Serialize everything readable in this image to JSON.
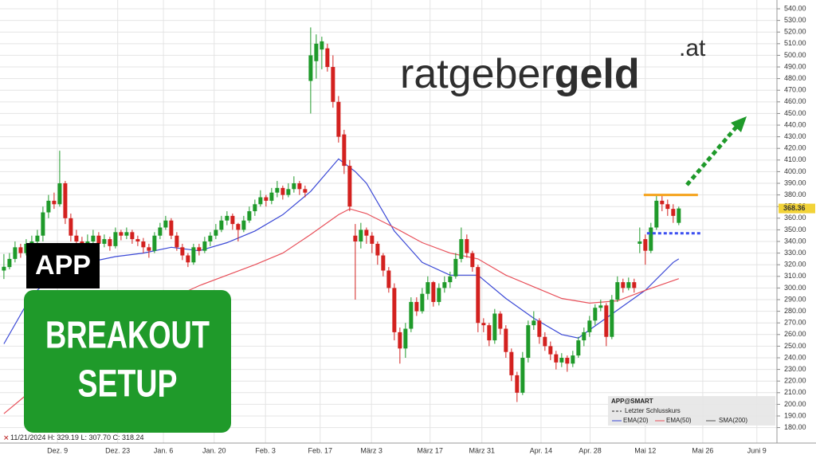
{
  "chart_data": {
    "type": "candlestick",
    "logo": {
      "main": "ratgeber",
      "bold": "geld",
      "suffix": ".at"
    },
    "badge": "APP",
    "setup": [
      "BREAKOUT",
      "SETUP"
    ],
    "info": {
      "date": "11/21/2024",
      "high": "H: 329.19",
      "low": "L: 307.70",
      "close": "C: 318.24"
    },
    "legend": {
      "title": "APP@SMART",
      "last_close": "Letzter Schlusskurs",
      "sma": "SMA(200)"
    },
    "colors": {
      "up": "#1f9a2a",
      "down": "#d3211f"
    },
    "xlim": [
      -0.7,
      138.6
    ],
    "xticks": [
      {
        "value": 9.6,
        "label": "Dez. 9"
      },
      {
        "value": 20.4,
        "label": "Dez. 23"
      },
      {
        "value": 28.6,
        "label": "Jan. 6"
      },
      {
        "value": 37.7,
        "label": "Jan. 20"
      },
      {
        "value": 46.9,
        "label": "Feb. 3"
      },
      {
        "value": 56.7,
        "label": "Feb. 17"
      },
      {
        "value": 65.9,
        "label": "März 3"
      },
      {
        "value": 76.4,
        "label": "März 17"
      },
      {
        "value": 85.7,
        "label": "März 31"
      },
      {
        "value": 96.3,
        "label": "Apr. 14"
      },
      {
        "value": 105.1,
        "label": "Apr. 28"
      },
      {
        "value": 115,
        "label": "Mai 12"
      },
      {
        "value": 125.3,
        "label": "Mai 26"
      },
      {
        "value": 135,
        "label": "Juni 9"
      }
    ],
    "ylim": [
      176.3,
      545.5
    ],
    "yticks": [
      {
        "value": 540,
        "label": "540.00"
      },
      {
        "value": 530,
        "label": "530.00"
      },
      {
        "value": 520,
        "label": "520.00"
      },
      {
        "value": 510,
        "label": "510.00"
      },
      {
        "value": 500,
        "label": "500.00"
      },
      {
        "value": 490,
        "label": "490.00"
      },
      {
        "value": 480,
        "label": "480.00"
      },
      {
        "value": 470,
        "label": "470.00"
      },
      {
        "value": 460,
        "label": "460.00"
      },
      {
        "value": 450,
        "label": "450.00"
      },
      {
        "value": 440,
        "label": "440.00"
      },
      {
        "value": 430,
        "label": "430.00"
      },
      {
        "value": 420,
        "label": "420.00"
      },
      {
        "value": 410,
        "label": "410.00"
      },
      {
        "value": 400,
        "label": "400.00"
      },
      {
        "value": 390,
        "label": "390.00"
      },
      {
        "value": 380,
        "label": "380.00"
      },
      {
        "value": 370,
        "label": "370.00"
      },
      {
        "value": 360,
        "label": "360.00"
      },
      {
        "value": 350,
        "label": "350.00"
      },
      {
        "value": 340,
        "label": "340.00"
      },
      {
        "value": 330,
        "label": "330.00"
      },
      {
        "value": 320,
        "label": "320.00"
      },
      {
        "value": 310,
        "label": "310.00"
      },
      {
        "value": 300,
        "label": "300.00"
      },
      {
        "value": 290,
        "label": "290.00"
      },
      {
        "value": 280,
        "label": "280.00"
      },
      {
        "value": 270,
        "label": "270.00"
      },
      {
        "value": 260,
        "label": "260.00"
      },
      {
        "value": 250,
        "label": "250.00"
      },
      {
        "value": 240,
        "label": "240.00"
      },
      {
        "value": 230,
        "label": "230.00"
      },
      {
        "value": 220,
        "label": "220.00"
      },
      {
        "value": 210,
        "label": "210.00"
      },
      {
        "value": 200,
        "label": "200.00"
      },
      {
        "value": 190,
        "label": "190.00"
      },
      {
        "value": 180,
        "label": "180.00"
      }
    ],
    "grid": true,
    "candles": [
      [
        315,
        329.19,
        307.7,
        318.24
      ],
      [
        318,
        330,
        316,
        325
      ],
      [
        325,
        340,
        322,
        335
      ],
      [
        335,
        338,
        326,
        330
      ],
      [
        330,
        342,
        328,
        338
      ],
      [
        338,
        345,
        333,
        340
      ],
      [
        340,
        350,
        336,
        345
      ],
      [
        345,
        370,
        340,
        365
      ],
      [
        365,
        380,
        360,
        375
      ],
      [
        375,
        382,
        368,
        372
      ],
      [
        372,
        418,
        370,
        390
      ],
      [
        390,
        392,
        355,
        360
      ],
      [
        360,
        364,
        340,
        345
      ],
      [
        345,
        350,
        336,
        340
      ],
      [
        340,
        344,
        330,
        335
      ],
      [
        335,
        346,
        332,
        340
      ],
      [
        340,
        350,
        338,
        345
      ],
      [
        345,
        348,
        334,
        338
      ],
      [
        338,
        346,
        335,
        342
      ],
      [
        342,
        344,
        332,
        336
      ],
      [
        336,
        352,
        334,
        348
      ],
      [
        348,
        350,
        341,
        345
      ],
      [
        345,
        352,
        342,
        348
      ],
      [
        348,
        350,
        338,
        342
      ],
      [
        342,
        345,
        336,
        340
      ],
      [
        340,
        343,
        330,
        335
      ],
      [
        335,
        338,
        326,
        332
      ],
      [
        332,
        348,
        330,
        345
      ],
      [
        345,
        356,
        342,
        352
      ],
      [
        352,
        362,
        350,
        358
      ],
      [
        358,
        360,
        342,
        345
      ],
      [
        345,
        348,
        332,
        335
      ],
      [
        335,
        338,
        324,
        328
      ],
      [
        328,
        330,
        318,
        322
      ],
      [
        322,
        338,
        320,
        335
      ],
      [
        335,
        338,
        328,
        332
      ],
      [
        332,
        344,
        330,
        340
      ],
      [
        340,
        348,
        336,
        345
      ],
      [
        345,
        355,
        342,
        350
      ],
      [
        350,
        362,
        348,
        358
      ],
      [
        358,
        366,
        354,
        362
      ],
      [
        362,
        364,
        350,
        355
      ],
      [
        355,
        356,
        340,
        350
      ],
      [
        350,
        362,
        348,
        358
      ],
      [
        358,
        370,
        356,
        366
      ],
      [
        366,
        376,
        362,
        372
      ],
      [
        372,
        384,
        370,
        378
      ],
      [
        378,
        380,
        370,
        375
      ],
      [
        375,
        386,
        372,
        382
      ],
      [
        382,
        392,
        378,
        386
      ],
      [
        386,
        388,
        376,
        380
      ],
      [
        380,
        390,
        378,
        385
      ],
      [
        385,
        396,
        382,
        390
      ],
      [
        390,
        392,
        380,
        385
      ],
      [
        385,
        388,
        378,
        382
      ],
      [
        478,
        524,
        450,
        500
      ],
      [
        495,
        518,
        480,
        510
      ],
      [
        505,
        516,
        488,
        512
      ],
      [
        506,
        510,
        486,
        490
      ],
      [
        490,
        500,
        455,
        460
      ],
      [
        460,
        465,
        425,
        430
      ],
      [
        432,
        436,
        398,
        405
      ],
      [
        405,
        410,
        366,
        370
      ],
      [
        345,
        355,
        290,
        340
      ],
      [
        340,
        356,
        334,
        350
      ],
      [
        350,
        352,
        338,
        345
      ],
      [
        345,
        348,
        330,
        338
      ],
      [
        338,
        340,
        320,
        328
      ],
      [
        328,
        330,
        310,
        315
      ],
      [
        315,
        318,
        296,
        300
      ],
      [
        300,
        304,
        255,
        262
      ],
      [
        262,
        266,
        235,
        248
      ],
      [
        248,
        270,
        240,
        265
      ],
      [
        265,
        292,
        262,
        288
      ],
      [
        288,
        292,
        276,
        280
      ],
      [
        280,
        300,
        278,
        295
      ],
      [
        295,
        310,
        290,
        305
      ],
      [
        305,
        306,
        284,
        288
      ],
      [
        288,
        304,
        285,
        300
      ],
      [
        300,
        310,
        296,
        305
      ],
      [
        305,
        314,
        300,
        310
      ],
      [
        310,
        330,
        308,
        325
      ],
      [
        325,
        352,
        322,
        342
      ],
      [
        342,
        346,
        326,
        330
      ],
      [
        330,
        332,
        314,
        318
      ],
      [
        318,
        320,
        262,
        270
      ],
      [
        270,
        274,
        262,
        268
      ],
      [
        268,
        270,
        250,
        255
      ],
      [
        255,
        282,
        252,
        278
      ],
      [
        278,
        280,
        260,
        265
      ],
      [
        265,
        268,
        240,
        245
      ],
      [
        245,
        248,
        220,
        225
      ],
      [
        225,
        228,
        202,
        210
      ],
      [
        210,
        245,
        208,
        240
      ],
      [
        240,
        272,
        236,
        268
      ],
      [
        268,
        280,
        264,
        272
      ],
      [
        272,
        274,
        252,
        258
      ],
      [
        258,
        262,
        246,
        250
      ],
      [
        250,
        254,
        238,
        243
      ],
      [
        243,
        246,
        230,
        236
      ],
      [
        236,
        244,
        232,
        240
      ],
      [
        240,
        242,
        228,
        235
      ],
      [
        235,
        246,
        232,
        242
      ],
      [
        242,
        258,
        240,
        255
      ],
      [
        255,
        266,
        250,
        262
      ],
      [
        262,
        276,
        258,
        272
      ],
      [
        272,
        286,
        268,
        283
      ],
      [
        283,
        290,
        280,
        285
      ],
      [
        285,
        287,
        250,
        258
      ],
      [
        258,
        294,
        256,
        290
      ],
      [
        290,
        310,
        288,
        305
      ],
      [
        305,
        308,
        296,
        300
      ],
      [
        300,
        309,
        298,
        305
      ],
      [
        305,
        308,
        296,
        300
      ],
      [
        338,
        352,
        330,
        340
      ],
      [
        342,
        346,
        320,
        332
      ],
      [
        332,
        356,
        330,
        352
      ],
      [
        352,
        380,
        350,
        375
      ],
      [
        375,
        380,
        366,
        372
      ],
      [
        372,
        376,
        362,
        368
      ],
      [
        368,
        372,
        356,
        362
      ],
      [
        356,
        370,
        354,
        368.36
      ]
    ],
    "series": [
      {
        "name": "EMA(20)",
        "color": "#3a48d6",
        "x": [
          0,
          5,
          10,
          15,
          20,
          25,
          30,
          35,
          40,
          45,
          50,
          55,
          60,
          63,
          65,
          70,
          75,
          80,
          85,
          90,
          95,
          100,
          103,
          105,
          110,
          115,
          120,
          121
        ],
        "values": [
          252,
          294,
          315,
          322,
          327,
          330,
          335,
          332,
          339,
          349,
          363,
          383,
          411,
          400,
          390,
          349,
          322,
          311,
          311,
          291,
          274,
          260,
          257,
          264,
          281,
          298,
          322,
          325
        ]
      },
      {
        "name": "EMA(50)",
        "color": "#e8505a",
        "x": [
          0,
          5,
          10,
          15,
          20,
          25,
          30,
          35,
          40,
          45,
          50,
          55,
          60,
          62,
          65,
          70,
          75,
          80,
          85,
          90,
          95,
          100,
          105,
          110,
          115,
          121
        ],
        "values": [
          192,
          212,
          229,
          243,
          257,
          274,
          291,
          302,
          311,
          320,
          330,
          346,
          363,
          368,
          364,
          352,
          339,
          330,
          325,
          311,
          301,
          291,
          287,
          289,
          298,
          308
        ]
      }
    ],
    "levels": {
      "resistance": 380,
      "support": 347,
      "from": 115,
      "to": 124
    }
  }
}
